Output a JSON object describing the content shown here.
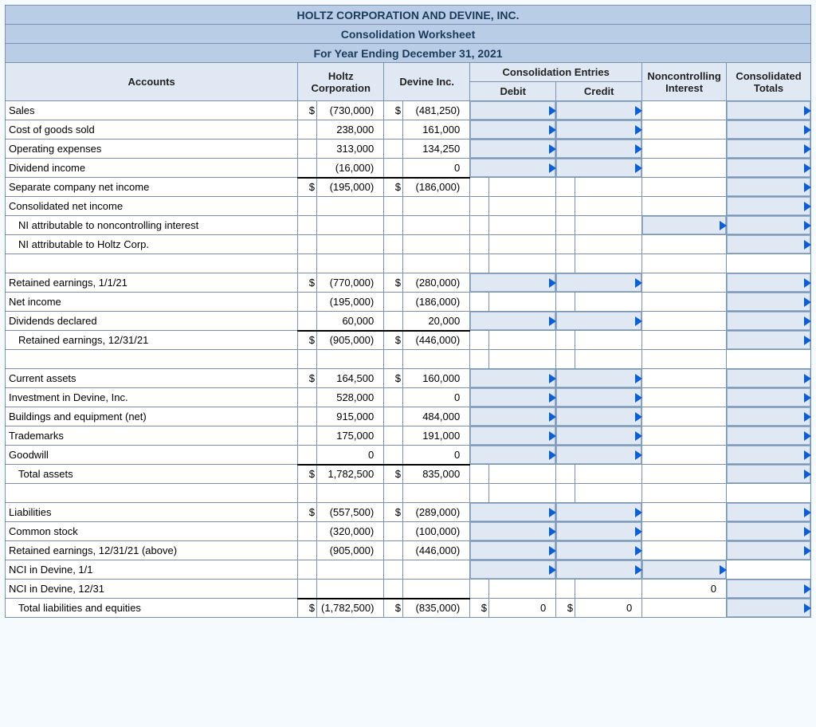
{
  "colors": {
    "title_bg": "#b9cde6",
    "title_text": "#1a3a5a",
    "header_bg": "#dfe8f3",
    "border": "#7a93b0",
    "input_bg": "#dfe8f3",
    "input_border": "#94aecc",
    "marker": "#0a5fd6",
    "page_bg": "#f5faff"
  },
  "typography": {
    "font_family": "Arial",
    "base_fontsize": 13
  },
  "titles": {
    "line1": "HOLTZ CORPORATION AND DEVINE, INC.",
    "line2": "Consolidation Worksheet",
    "line3": "For Year Ending December 31, 2021"
  },
  "headers": {
    "accounts": "Accounts",
    "holtz": "Holtz Corporation",
    "devine": "Devine Inc.",
    "consol_entries": "Consolidation Entries",
    "debit": "Debit",
    "credit": "Credit",
    "nci": "Noncontrolling Interest",
    "totals": "Consolidated Totals"
  },
  "rows": [
    {
      "label": "Sales",
      "holtz_d": "$",
      "holtz": "(730,000)",
      "devine_d": "$",
      "devine": "(481,250)",
      "debit": "in",
      "credit": "in",
      "nci": "",
      "totals": "in"
    },
    {
      "label": "Cost of goods sold",
      "holtz": "238,000",
      "devine": "161,000",
      "debit": "in",
      "credit": "in",
      "nci": "",
      "totals": "in"
    },
    {
      "label": "Operating expenses",
      "holtz": "313,000",
      "devine": "134,250",
      "debit": "in",
      "credit": "in",
      "nci": "",
      "totals": "in"
    },
    {
      "label": "Dividend income",
      "holtz": "(16,000)",
      "devine": "0",
      "debit": "in",
      "credit": "in",
      "nci": "",
      "totals": "in"
    },
    {
      "label": "Separate company net income",
      "holtz_d": "$",
      "holtz": "(195,000)",
      "devine_d": "$",
      "devine": "(186,000)",
      "topborder": true,
      "totals": "in"
    },
    {
      "label": "Consolidated net income",
      "totals": "in"
    },
    {
      "label": "NI attributable to noncontrolling interest",
      "indent": true,
      "nci": "in",
      "totals": "in"
    },
    {
      "label": "NI attributable to Holtz Corp.",
      "indent": true,
      "totals": "in"
    },
    {
      "spacer": true
    },
    {
      "label": "Retained earnings, 1/1/21",
      "holtz_d": "$",
      "holtz": "(770,000)",
      "devine_d": "$",
      "devine": "(280,000)",
      "debit": "in",
      "credit": "in",
      "nci": "",
      "totals": "in"
    },
    {
      "label": "Net income",
      "holtz": "(195,000)",
      "devine": "(186,000)",
      "totals": "in"
    },
    {
      "label": "Dividends declared",
      "holtz": "60,000",
      "devine": "20,000",
      "debit": "in",
      "credit": "in",
      "nci": "",
      "totals": "in"
    },
    {
      "label": "Retained earnings, 12/31/21",
      "indent": true,
      "holtz_d": "$",
      "holtz": "(905,000)",
      "devine_d": "$",
      "devine": "(446,000)",
      "topborder": true,
      "totals": "in"
    },
    {
      "spacer": true
    },
    {
      "label": "Current assets",
      "holtz_d": "$",
      "holtz": "164,500",
      "devine_d": "$",
      "devine": "160,000",
      "debit": "in",
      "credit": "in",
      "nci": "",
      "totals": "in"
    },
    {
      "label": "Investment in Devine, Inc.",
      "holtz": "528,000",
      "devine": "0",
      "debit": "in",
      "credit": "in",
      "nci": "",
      "totals": "in"
    },
    {
      "label": "Buildings and equipment (net)",
      "holtz": "915,000",
      "devine": "484,000",
      "debit": "in",
      "credit": "in",
      "nci": "",
      "totals": "in"
    },
    {
      "label": "Trademarks",
      "holtz": "175,000",
      "devine": "191,000",
      "debit": "in",
      "credit": "in",
      "nci": "",
      "totals": "in"
    },
    {
      "label": "Goodwill",
      "holtz": "0",
      "devine": "0",
      "debit": "in",
      "credit": "in",
      "nci": "",
      "totals": "in"
    },
    {
      "label": "Total assets",
      "indent": true,
      "holtz_d": "$",
      "holtz": "1,782,500",
      "devine_d": "$",
      "devine": "835,000",
      "topborder": true,
      "totals": "in"
    },
    {
      "spacer": true
    },
    {
      "label": "Liabilities",
      "holtz_d": "$",
      "holtz": "(557,500)",
      "devine_d": "$",
      "devine": "(289,000)",
      "debit": "in",
      "credit": "in",
      "nci": "",
      "totals": "in"
    },
    {
      "label": "Common stock",
      "holtz": "(320,000)",
      "devine": "(100,000)",
      "debit": "in",
      "credit": "in",
      "nci": "",
      "totals": "in"
    },
    {
      "label": "Retained earnings, 12/31/21 (above)",
      "holtz": "(905,000)",
      "devine": "(446,000)",
      "debit": "in",
      "credit": "in",
      "nci": "",
      "totals": "in"
    },
    {
      "label": "NCI in Devine, 1/1",
      "debit": "in",
      "credit": "in",
      "nci": "in",
      "totals": ""
    },
    {
      "label": "NCI in Devine, 12/31",
      "nci_val": "0",
      "totals": "in"
    },
    {
      "label": "Total liabilities and equities",
      "indent": true,
      "holtz_d": "$",
      "holtz": "(1,782,500)",
      "devine_d": "$",
      "devine": "(835,000)",
      "topborder": true,
      "debit_d": "$",
      "debit_val": "0",
      "credit_d": "$",
      "credit_val": "0",
      "totals": "in"
    }
  ]
}
